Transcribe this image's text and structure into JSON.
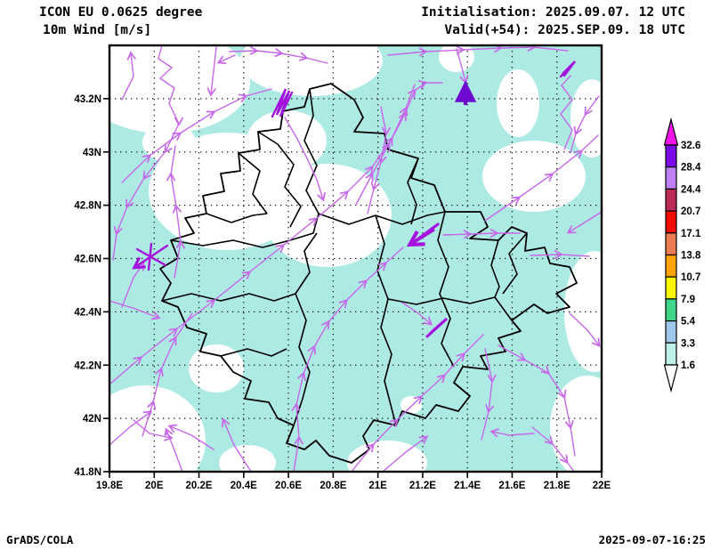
{
  "header": {
    "model_line": "ICON EU 0.0625 degree",
    "field_line": "10m Wind [m/s]",
    "init_line": "Initialisation: 2025.09.07. 12 UTC",
    "valid_line": "Valid(+54): 2025.SEP.09. 18 UTC"
  },
  "footer": {
    "left": "GrADS/COLA",
    "right": "2025-09-07-16:25"
  },
  "axes": {
    "x_ticks": [
      "19.8E",
      "20E",
      "20.2E",
      "20.4E",
      "20.6E",
      "20.8E",
      "21E",
      "21.2E",
      "21.4E",
      "21.6E",
      "21.8E",
      "22E"
    ],
    "y_ticks": [
      "41.8N",
      "42N",
      "42.2N",
      "42.4N",
      "42.6N",
      "42.8N",
      "43N",
      "43.2N"
    ]
  },
  "legend": {
    "labels": [
      "32.6",
      "28.4",
      "24.4",
      "20.7",
      "17.1",
      "13.8",
      "10.7",
      "7.9",
      "5.4",
      "3.3",
      "1.6"
    ],
    "colors_top_to_bottom": [
      "#7A0AE8",
      "#BE7EF4",
      "#BB2B55",
      "#F50B00",
      "#EA7B52",
      "#FFA300",
      "#FBF800",
      "#3FD78A",
      "#9FC8EC",
      "#BDF2EB"
    ],
    "over_color": "#F214E8",
    "under_color": "#FFFFFF"
  },
  "map": {
    "shading_color": "#AEEAE4",
    "streamline_color": "#C767EA",
    "dark_arrow_color": "#6E09D0",
    "cluster_color": "#A512DE",
    "boundary_color": "#000000",
    "grid_color": "#222222",
    "frame_color": "#000000"
  },
  "chart_data": {
    "type": "map-wind-streamlines",
    "title": "10m Wind [m/s]",
    "model": "ICON EU 0.0625 degree",
    "initialisation": "2025.09.07. 12 UTC",
    "valid": "Valid(+54): 2025.SEP.09. 18 UTC",
    "x_axis": {
      "label_type": "longitude",
      "range": [
        "19.8E",
        "22E"
      ],
      "step_deg": 0.2
    },
    "y_axis": {
      "label_type": "latitude",
      "range": [
        "41.8N",
        "43.2N"
      ],
      "step_deg": 0.2
    },
    "colorbar_levels_mps": [
      1.6,
      3.3,
      5.4,
      7.9,
      10.7,
      13.8,
      17.1,
      20.7,
      24.4,
      28.4,
      32.6
    ],
    "shaded_bin_on_map": "1.6-3.3 m/s (pale cyan)",
    "grid": "dotted lat/lon graticule every 0.2 degree",
    "legend_position": "right"
  }
}
